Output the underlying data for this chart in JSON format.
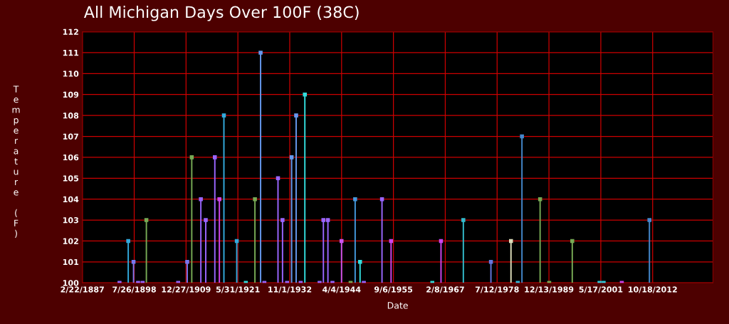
{
  "chart_data": {
    "type": "lollipop",
    "title": "All Michigan Days Over 100F (38C)",
    "xlabel": "Date",
    "ylabel": "Temperature (F)",
    "x": [
      "1895-05",
      "1897-04",
      "1898-06",
      "1899-06",
      "1900-06",
      "1901-04",
      "1908-04",
      "1910-04",
      "1911-04",
      "1913-04",
      "1914-05",
      "1916-05",
      "1917-05",
      "1918-05",
      "1921-03",
      "1923-03",
      "1925-03",
      "1926-06",
      "1927-04",
      "1930-04",
      "1931-04",
      "1932-04",
      "1933-04",
      "1934-04",
      "1935-04",
      "1936-03",
      "1939-06",
      "1940-04",
      "1941-04",
      "1942-04",
      "1944-04",
      "1946-04",
      "1947-04",
      "1948-05",
      "1949-03",
      "1953-03",
      "1955-03",
      "1964-04",
      "1966-03",
      "1971-02",
      "1977-03",
      "1981-08",
      "1983-02",
      "1984-01",
      "1988-01",
      "1990-01",
      "1995-02",
      "2001-02",
      "2002-01",
      "2006-01",
      "2012-02"
    ],
    "values": [
      100,
      102,
      101,
      100,
      100,
      103,
      100,
      101,
      106,
      104,
      103,
      106,
      104,
      108,
      102,
      100,
      104,
      111,
      100,
      105,
      103,
      100,
      106,
      108,
      100,
      109,
      100,
      103,
      103,
      100,
      102,
      100,
      104,
      101,
      100,
      104,
      102,
      100,
      102,
      103,
      101,
      102,
      100,
      107,
      104,
      100,
      102,
      100,
      100,
      100,
      103
    ],
    "colors": [
      "#9966ff",
      "#33aadd",
      "#7777ee",
      "#9966ff",
      "#9966ff",
      "#77aa55",
      "#9966ff",
      "#7777ee",
      "#77aa55",
      "#9966ff",
      "#9966ff",
      "#9966ff",
      "#cc44ee",
      "#33aadd",
      "#33aadd",
      "#33dddd",
      "#77aa55",
      "#6699ee",
      "#9966ff",
      "#9966ff",
      "#9966ff",
      "#9966ff",
      "#6699ee",
      "#6699ee",
      "#9966ff",
      "#33dddd",
      "#9966ff",
      "#9966ff",
      "#9966ff",
      "#9966ff",
      "#cc55ee",
      "#77aa55",
      "#4499dd",
      "#33dddd",
      "#9966ff",
      "#9966ff",
      "#cc44ee",
      "#33dddd",
      "#cc44ee",
      "#33bbcc",
      "#6677dd",
      "#ddddbb",
      "#33bbdd",
      "#4488cc",
      "#77aa55",
      "#77aa55",
      "#77aa55",
      "#33ccdd",
      "#33ccdd",
      "#cc44ee",
      "#4488cc"
    ],
    "xlim": [
      "1887-02-22",
      "2026-02-01"
    ],
    "ylim": [
      100,
      112
    ],
    "xticks": [
      {
        "value": "1887-02-22",
        "label": "2/22/1887"
      },
      {
        "value": "1898-07-26",
        "label": "7/26/1898"
      },
      {
        "value": "1909-12-27",
        "label": "12/27/1909"
      },
      {
        "value": "1921-05-31",
        "label": "5/31/1921"
      },
      {
        "value": "1932-11-01",
        "label": "11/1/1932"
      },
      {
        "value": "1944-04-04",
        "label": "4/4/1944"
      },
      {
        "value": "1955-09-06",
        "label": "9/6/1955"
      },
      {
        "value": "1967-02-08",
        "label": "2/8/1967"
      },
      {
        "value": "1978-07-12",
        "label": "7/12/1978"
      },
      {
        "value": "1989-12-13",
        "label": "12/13/1989"
      },
      {
        "value": "2001-05-17",
        "label": "5/17/2001"
      },
      {
        "value": "2012-10-18",
        "label": "10/18/2012"
      }
    ],
    "yticks": [
      100,
      101,
      102,
      103,
      104,
      105,
      106,
      107,
      108,
      109,
      110,
      111,
      112
    ],
    "grid": true,
    "marker": "square"
  }
}
